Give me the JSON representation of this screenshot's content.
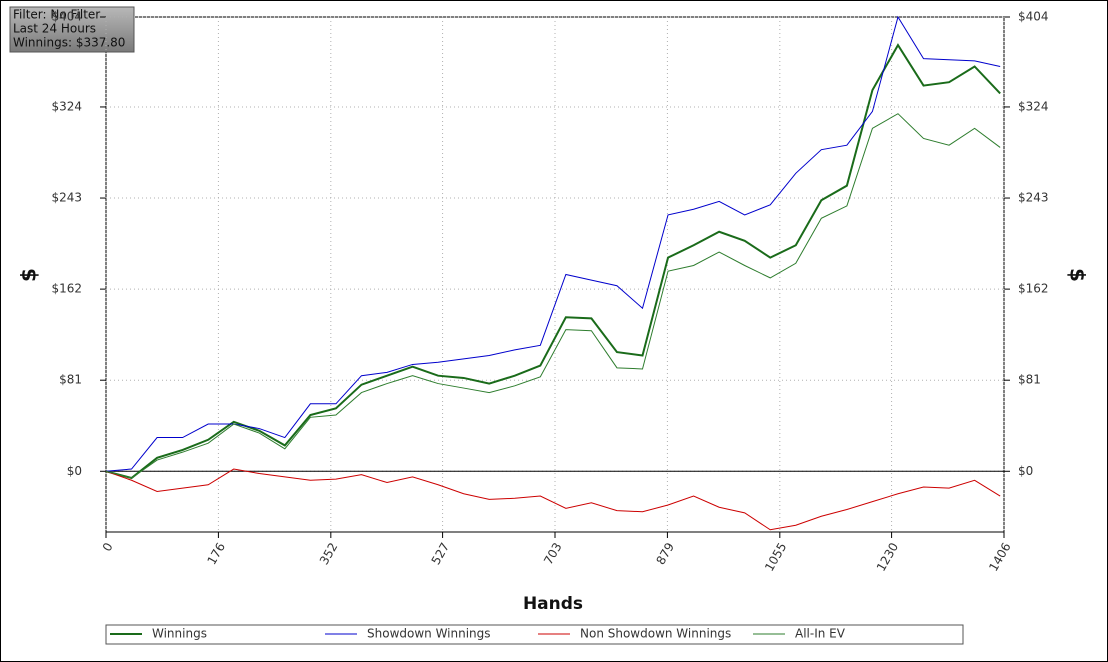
{
  "chart_data": {
    "type": "line",
    "info": [
      "Filter: No Filter",
      "Last 24 Hours",
      "Winnings: $337.80"
    ],
    "x_label": "Hands",
    "y_label": "$",
    "x": [
      0,
      40,
      80,
      120,
      160,
      200,
      240,
      280,
      320,
      360,
      400,
      440,
      480,
      520,
      560,
      600,
      640,
      680,
      720,
      760,
      800,
      840,
      880,
      920,
      960,
      1000,
      1040,
      1080,
      1120,
      1160,
      1200,
      1240,
      1280,
      1320,
      1360,
      1400
    ],
    "series": [
      {
        "name": "Winnings",
        "color": "#1a6b1a",
        "values": [
          0,
          -6,
          12,
          19,
          28,
          44,
          36,
          23,
          50,
          56,
          77,
          85,
          93,
          85,
          83,
          78,
          85,
          94,
          137,
          136,
          106,
          103,
          190,
          201,
          213,
          205,
          190,
          201,
          241,
          254,
          339,
          379,
          343,
          346,
          360,
          336
        ]
      },
      {
        "name": "Showdown Winnings",
        "color": "#0000cc",
        "values": [
          0,
          2,
          30,
          30,
          42,
          42,
          38,
          30,
          60,
          60,
          85,
          88,
          95,
          97,
          100,
          103,
          108,
          112,
          175,
          170,
          165,
          145,
          228,
          233,
          240,
          228,
          237,
          265,
          286,
          290,
          320,
          404,
          367,
          366,
          365,
          360
        ]
      },
      {
        "name": "Non Showdown Winnings",
        "color": "#cc0000",
        "values": [
          0,
          -8,
          -18,
          -15,
          -12,
          2,
          -2,
          -5,
          -8,
          -7,
          -3,
          -10,
          -5,
          -12,
          -20,
          -25,
          -24,
          -22,
          -33,
          -28,
          -35,
          -36,
          -30,
          -22,
          -32,
          -37,
          -52,
          -48,
          -40,
          -34,
          -27,
          -20,
          -14,
          -15,
          -8,
          -22
        ]
      },
      {
        "name": "All-In EV",
        "color": "#2e7d2e",
        "values": [
          0,
          -6,
          10,
          17,
          25,
          42,
          34,
          20,
          48,
          50,
          70,
          78,
          85,
          78,
          74,
          70,
          76,
          84,
          126,
          125,
          92,
          91,
          178,
          183,
          195,
          183,
          172,
          185,
          225,
          236,
          305,
          318,
          296,
          290,
          305,
          288
        ]
      }
    ],
    "xlim": [
      0,
      1406
    ],
    "xticks": [
      0,
      176,
      352,
      527,
      703,
      879,
      1055,
      1230,
      1406
    ],
    "ylim": [
      -54,
      404
    ],
    "yticks": [
      {
        "value": 0,
        "label": "$0"
      },
      {
        "value": 81,
        "label": "$81"
      },
      {
        "value": 162,
        "label": "$162"
      },
      {
        "value": 243,
        "label": "$243"
      },
      {
        "value": 324,
        "label": "$324"
      },
      {
        "value": 404,
        "label": "$404"
      }
    ],
    "grid": true
  }
}
